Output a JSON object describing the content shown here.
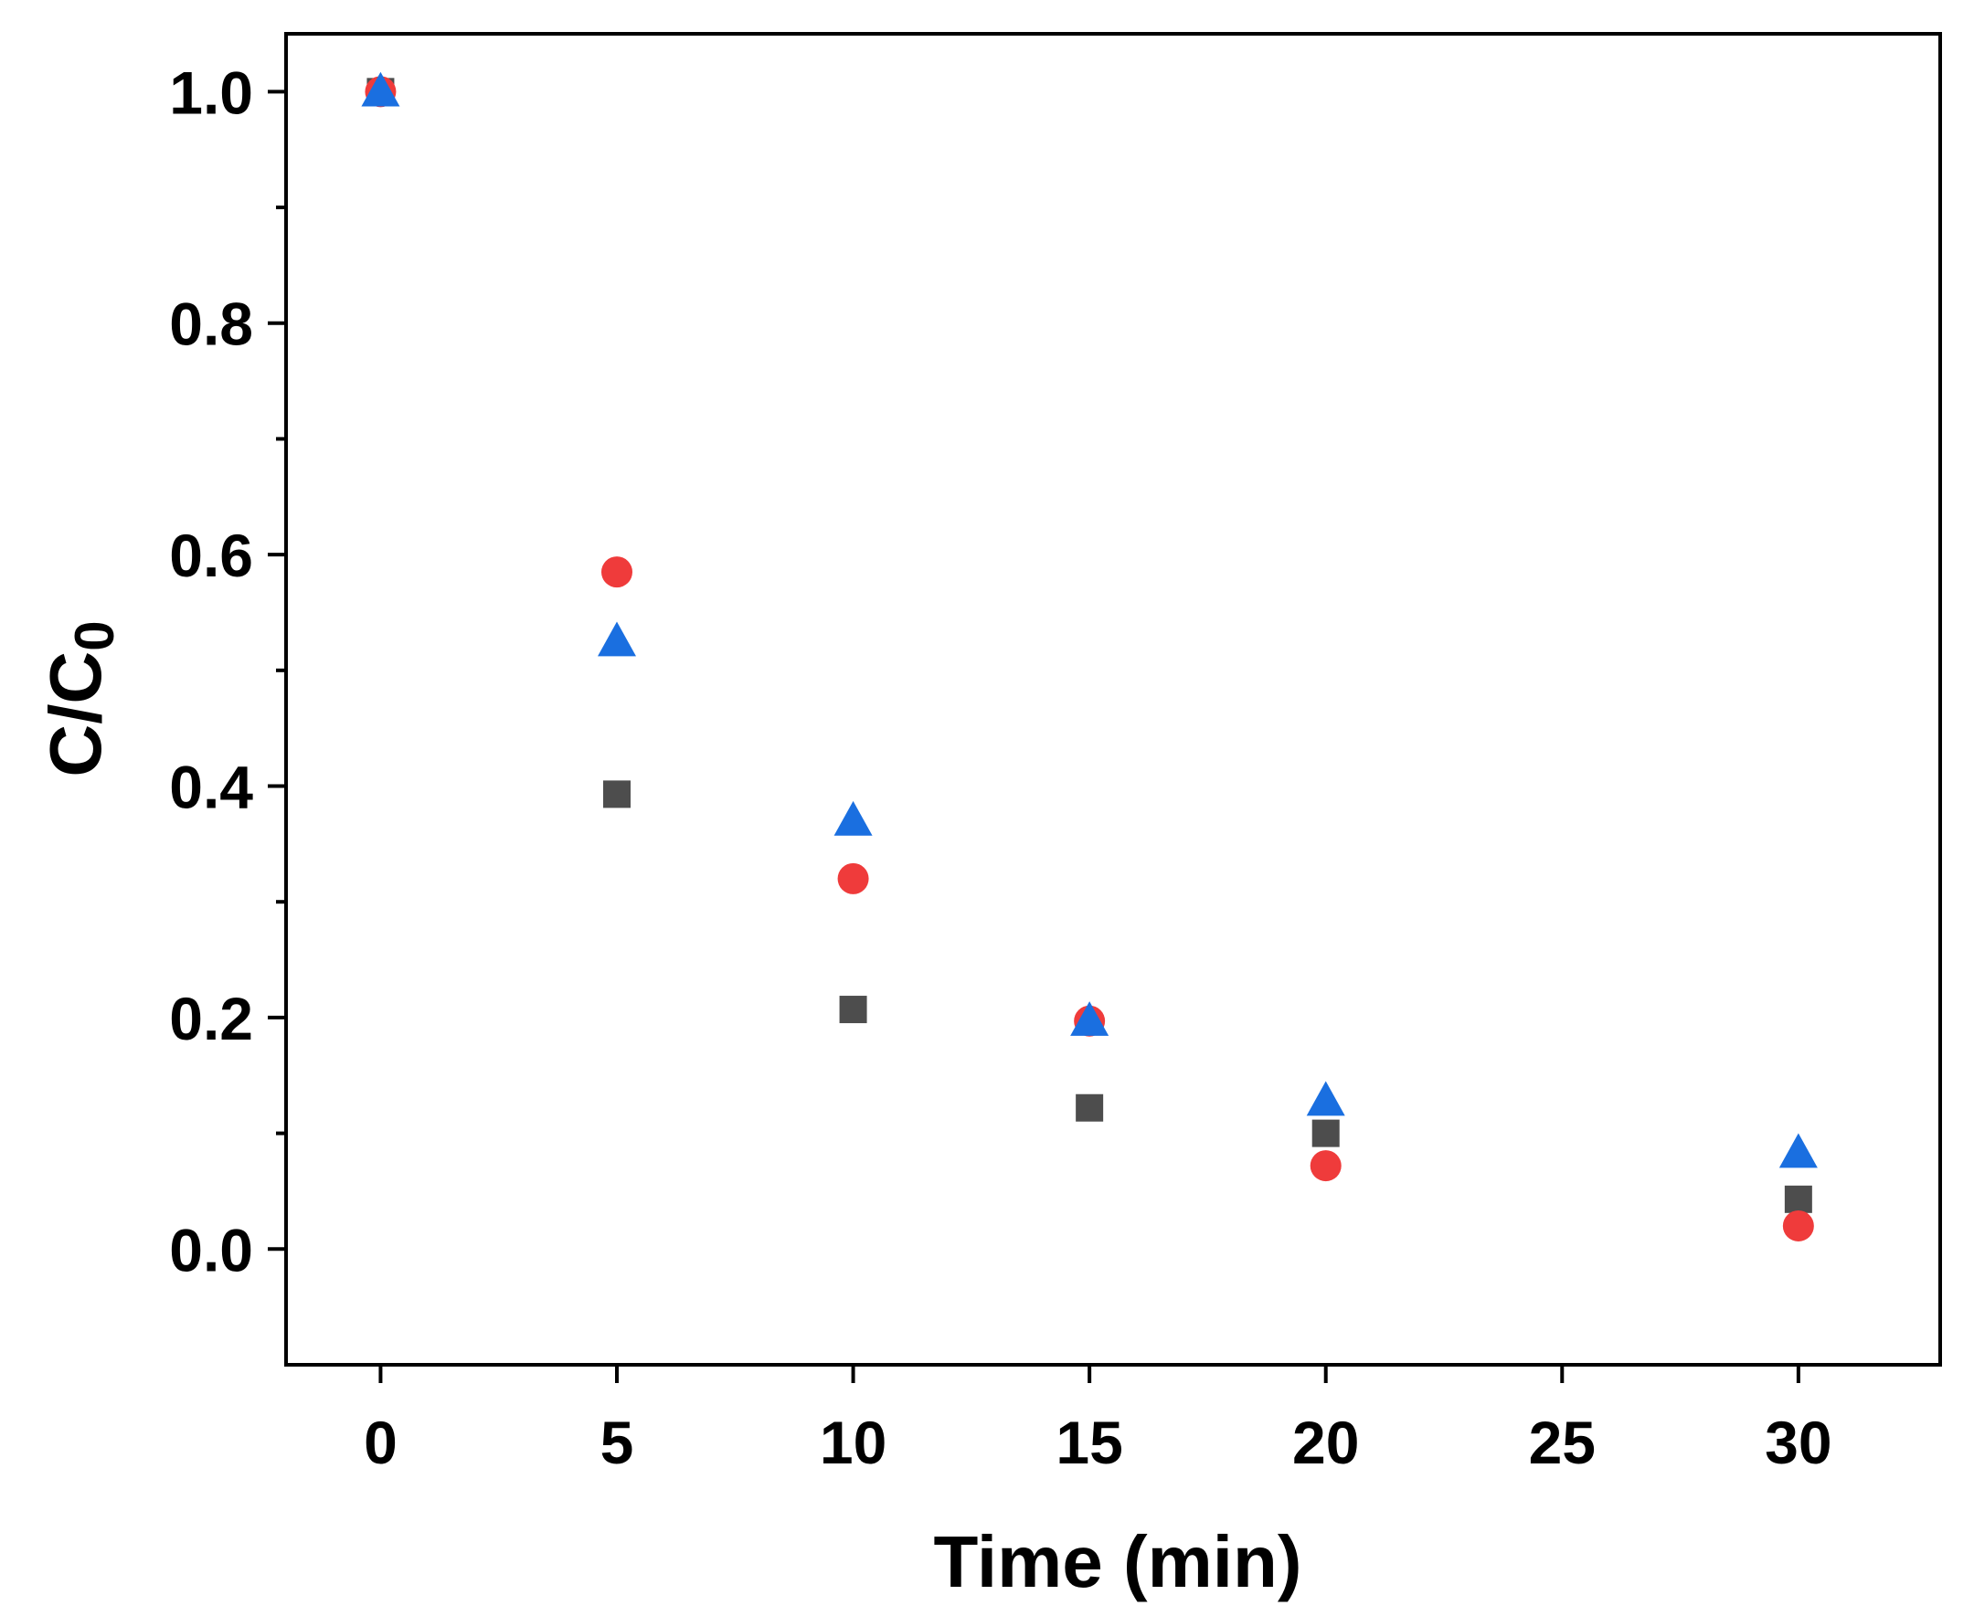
{
  "chart_data": {
    "type": "scatter",
    "title": "",
    "xlabel": "Time (min)",
    "ylabel": {
      "main": "C/C",
      "subscript": "0"
    },
    "xlim": [
      -2,
      33
    ],
    "ylim": [
      -0.1,
      1.05
    ],
    "x_ticks": [
      0,
      5,
      10,
      15,
      20,
      25,
      30
    ],
    "x_tick_labels": [
      "0",
      "5",
      "10",
      "15",
      "20",
      "25",
      "30"
    ],
    "y_ticks": [
      0.0,
      0.2,
      0.4,
      0.6,
      0.8,
      1.0
    ],
    "y_tick_labels": [
      "0.0",
      "0.2",
      "0.4",
      "0.6",
      "0.8",
      "1.0"
    ],
    "y_minor_ticks": [
      0.1,
      0.3,
      0.5,
      0.7,
      0.9
    ],
    "grid": false,
    "legend": "none",
    "series": [
      {
        "marker": "square",
        "color": "#4d4d4d",
        "points": [
          [
            0,
            1.0
          ],
          [
            5,
            0.393
          ],
          [
            10,
            0.207
          ],
          [
            15,
            0.122
          ],
          [
            20,
            0.1
          ],
          [
            30,
            0.043
          ]
        ]
      },
      {
        "marker": "circle",
        "color": "#ef3b3b",
        "points": [
          [
            0,
            1.0
          ],
          [
            5,
            0.585
          ],
          [
            10,
            0.32
          ],
          [
            15,
            0.197
          ],
          [
            20,
            0.072
          ],
          [
            30,
            0.02
          ]
        ]
      },
      {
        "marker": "triangle",
        "color": "#1a6fe0",
        "points": [
          [
            0,
            1.0
          ],
          [
            5,
            0.525
          ],
          [
            10,
            0.37
          ],
          [
            15,
            0.197
          ],
          [
            20,
            0.128
          ],
          [
            30,
            0.083
          ]
        ]
      }
    ]
  }
}
